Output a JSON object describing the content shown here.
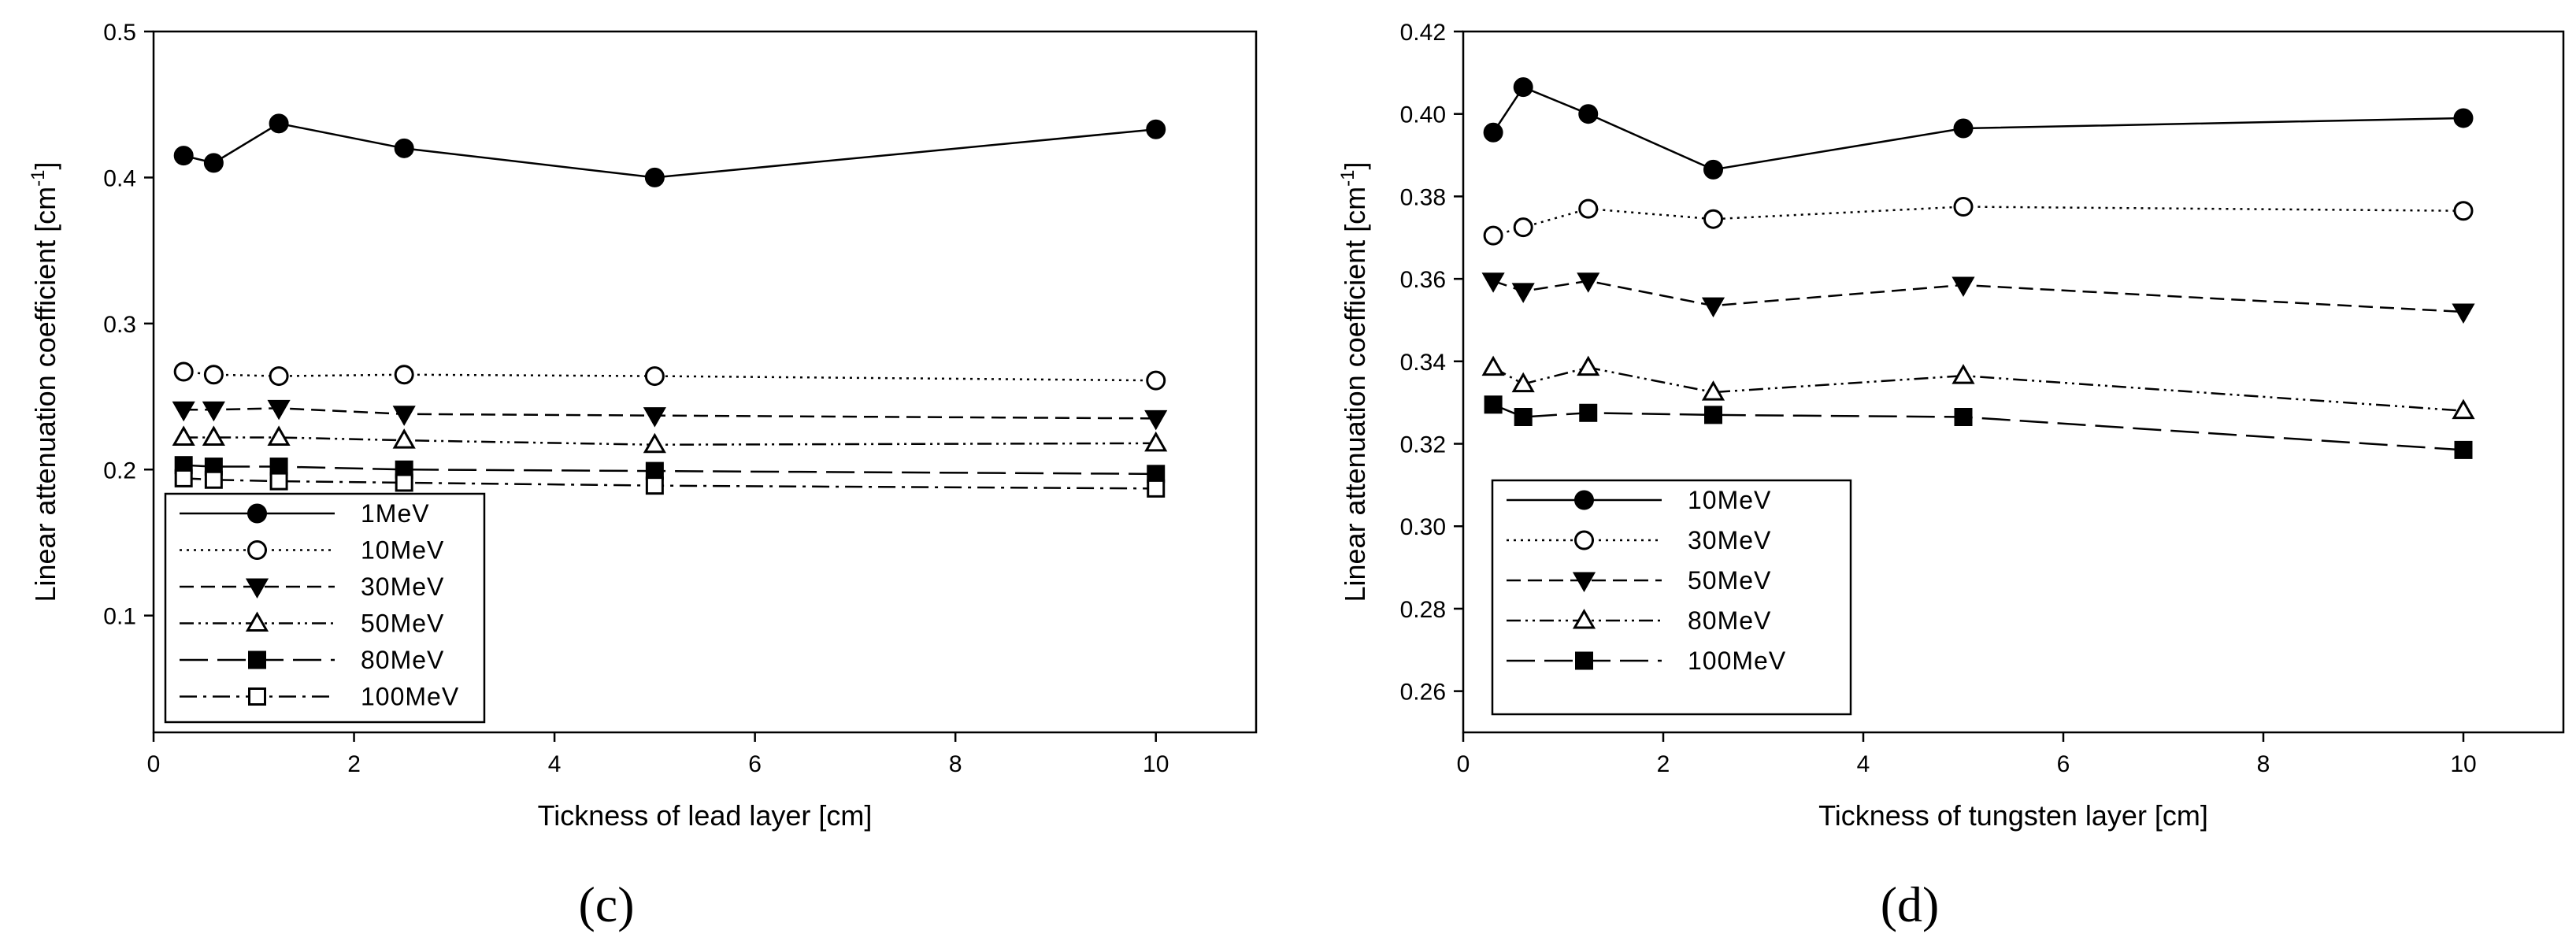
{
  "chart_data": [
    {
      "type": "line",
      "panel": "c",
      "xlabel": "Tickness of lead layer [cm]",
      "ylabel": "Linear attenuation coefficient [cm",
      "ylabel_sup": "-1",
      "ylabel_end": "]",
      "xlim": [
        0,
        11
      ],
      "ylim": [
        0.02,
        0.5
      ],
      "xticks": [
        0,
        2,
        4,
        6,
        8,
        10
      ],
      "yticks": [
        0.1,
        0.2,
        0.3,
        0.4,
        0.5
      ],
      "ytick_labels": [
        "0.1",
        "0.2",
        "0.3",
        "0.4",
        "0.5"
      ],
      "x": [
        0.3,
        0.6,
        1.25,
        2.5,
        5,
        10
      ],
      "legend_position": "bottom-left",
      "series": [
        {
          "name": "1MeV",
          "marker": "circle-filled",
          "dash": "solid",
          "values": [
            0.415,
            0.41,
            0.437,
            0.42,
            0.4,
            0.433
          ]
        },
        {
          "name": "10MeV",
          "marker": "circle-open",
          "dash": "dotted",
          "values": [
            0.267,
            0.265,
            0.264,
            0.265,
            0.264,
            0.261
          ]
        },
        {
          "name": "30MeV",
          "marker": "triangle-down-filled",
          "dash": "dashed",
          "values": [
            0.241,
            0.241,
            0.242,
            0.238,
            0.237,
            0.235
          ]
        },
        {
          "name": "50MeV",
          "marker": "triangle-up-open",
          "dash": "dashdotdot",
          "values": [
            0.222,
            0.222,
            0.222,
            0.22,
            0.217,
            0.218
          ]
        },
        {
          "name": "80MeV",
          "marker": "square-filled",
          "dash": "longdash",
          "values": [
            0.203,
            0.202,
            0.202,
            0.2,
            0.199,
            0.197
          ]
        },
        {
          "name": "100MeV",
          "marker": "square-open",
          "dash": "dashdot",
          "values": [
            0.194,
            0.193,
            0.192,
            0.191,
            0.189,
            0.187
          ]
        }
      ]
    },
    {
      "type": "line",
      "panel": "d",
      "xlabel": "Tickness of tungsten layer [cm]",
      "ylabel": "Linear attenuation coefficient [cm",
      "ylabel_sup": "-1",
      "ylabel_end": "]",
      "xlim": [
        0,
        11
      ],
      "ylim": [
        0.25,
        0.42
      ],
      "xticks": [
        0,
        2,
        4,
        6,
        8,
        10
      ],
      "yticks": [
        0.26,
        0.28,
        0.3,
        0.32,
        0.34,
        0.36,
        0.38,
        0.4,
        0.42
      ],
      "ytick_labels": [
        "0.26",
        "0.28",
        "0.30",
        "0.32",
        "0.34",
        "0.36",
        "0.38",
        "0.40",
        "0.42"
      ],
      "x": [
        0.3,
        0.6,
        1.25,
        2.5,
        5,
        10
      ],
      "legend_position": "bottom-left",
      "series": [
        {
          "name": "10MeV",
          "marker": "circle-filled",
          "dash": "solid",
          "values": [
            0.3955,
            0.4065,
            0.4,
            0.3865,
            0.3965,
            0.399
          ]
        },
        {
          "name": "30MeV",
          "marker": "circle-open",
          "dash": "dotted",
          "values": [
            0.3705,
            0.3725,
            0.377,
            0.3745,
            0.3775,
            0.3765
          ]
        },
        {
          "name": "50MeV",
          "marker": "triangle-down-filled",
          "dash": "dashed",
          "values": [
            0.3595,
            0.357,
            0.3595,
            0.3535,
            0.3585,
            0.352
          ]
        },
        {
          "name": "80MeV",
          "marker": "triangle-up-open",
          "dash": "dashdotdot",
          "values": [
            0.3385,
            0.3345,
            0.3385,
            0.3325,
            0.3365,
            0.328
          ]
        },
        {
          "name": "100MeV",
          "marker": "square-filled",
          "dash": "longdash",
          "values": [
            0.3295,
            0.3265,
            0.3275,
            0.327,
            0.3265,
            0.3185
          ]
        }
      ]
    }
  ],
  "panel_labels": [
    "(c)",
    "(d)"
  ]
}
